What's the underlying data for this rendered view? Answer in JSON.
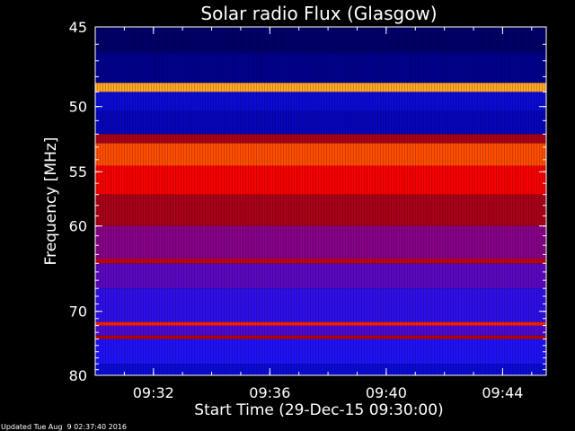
{
  "chart_data": {
    "type": "heatmap",
    "title": "Solar radio Flux (Glasgow)",
    "xlabel": "Start Time (29-Dec-15 09:30:00)",
    "ylabel": "Frequency [MHz]",
    "x_range": [
      "09:30:00",
      "09:45:30"
    ],
    "x_ticks": [
      "09:32",
      "09:36",
      "09:40",
      "09:44"
    ],
    "y_range": [
      45,
      80
    ],
    "y_ticks": [
      45,
      50,
      55,
      60,
      70,
      80
    ],
    "y_scale": "reciprocal",
    "colormap": [
      "#000020",
      "#0000a0",
      "#1414ff",
      "#8000a0",
      "#b00000",
      "#ff0000",
      "#ff8000",
      "#ffff80"
    ],
    "bands": [
      {
        "f0": 45.0,
        "f1": 46.5,
        "level": 0.08
      },
      {
        "f0": 46.5,
        "f1": 48.4,
        "level": 0.12
      },
      {
        "f0": 48.4,
        "f1": 49.0,
        "level": 0.9
      },
      {
        "f0": 49.0,
        "f1": 50.3,
        "level": 0.22
      },
      {
        "f0": 50.3,
        "f1": 52.0,
        "level": 0.18
      },
      {
        "f0": 52.0,
        "f1": 52.7,
        "level": 0.55
      },
      {
        "f0": 52.7,
        "f1": 54.5,
        "level": 0.8
      },
      {
        "f0": 54.5,
        "f1": 57.0,
        "level": 0.7
      },
      {
        "f0": 57.0,
        "f1": 60.0,
        "level": 0.55
      },
      {
        "f0": 60.0,
        "f1": 63.5,
        "level": 0.45
      },
      {
        "f0": 63.5,
        "f1": 64.0,
        "level": 0.62
      },
      {
        "f0": 64.0,
        "f1": 67.0,
        "level": 0.38
      },
      {
        "f0": 67.0,
        "f1": 71.5,
        "level": 0.32
      },
      {
        "f0": 71.5,
        "f1": 72.0,
        "level": 0.75
      },
      {
        "f0": 72.0,
        "f1": 73.5,
        "level": 0.36
      },
      {
        "f0": 73.5,
        "f1": 74.0,
        "level": 0.6
      },
      {
        "f0": 74.0,
        "f1": 78.0,
        "level": 0.3
      },
      {
        "f0": 78.0,
        "f1": 80.0,
        "level": 0.22
      }
    ],
    "grid": false,
    "legend": "none"
  },
  "footer": {
    "updated": "Updated Tue Aug  9 02:37:40 2016"
  }
}
